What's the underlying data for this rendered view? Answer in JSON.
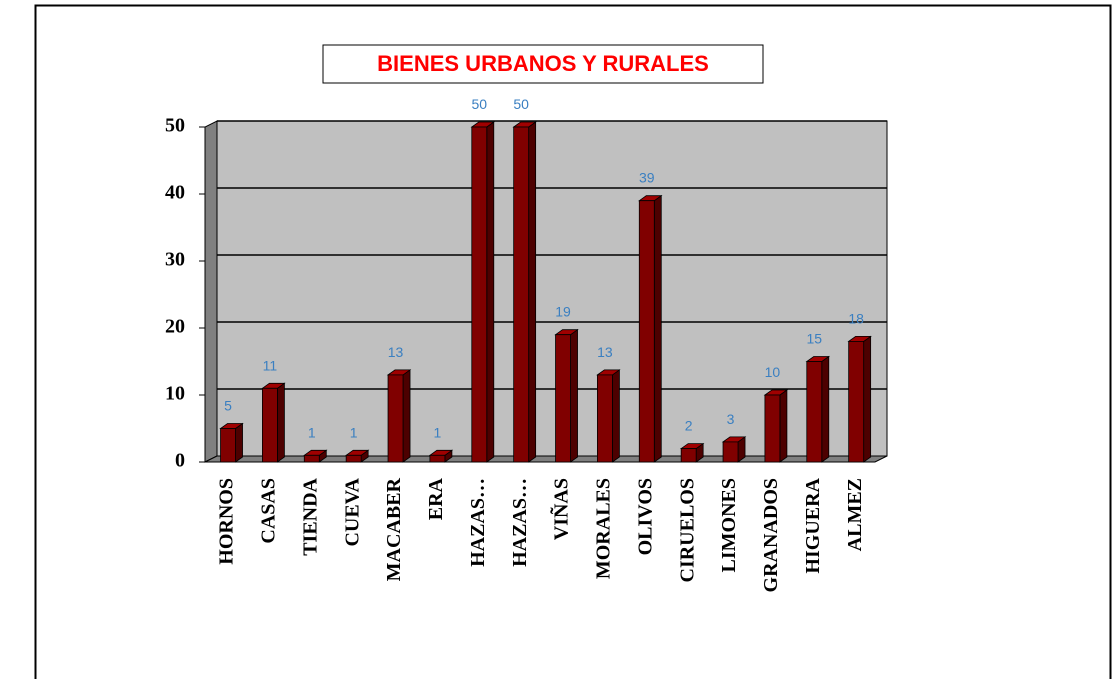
{
  "chart_data": {
    "type": "bar3d",
    "title": "BIENES URBANOS Y RURALES",
    "categories": [
      "HORNOS",
      "CASAS",
      "TIENDA",
      "CUEVA",
      "MACABER",
      "ERA",
      "HAZAS…",
      "HAZAS…",
      "VIÑAS",
      "MORALES",
      "OLIVOS",
      "CIRUELOS",
      "LIMONES",
      "GRANADOS",
      "HIGUERA",
      "ALMEZ"
    ],
    "values": [
      5,
      11,
      1,
      1,
      13,
      1,
      50,
      50,
      19,
      13,
      39,
      2,
      3,
      10,
      15,
      18
    ],
    "color": "#800000",
    "ylim": [
      0,
      50
    ],
    "yticks": [
      0,
      10,
      20,
      30,
      40,
      50
    ],
    "grid": true
  }
}
